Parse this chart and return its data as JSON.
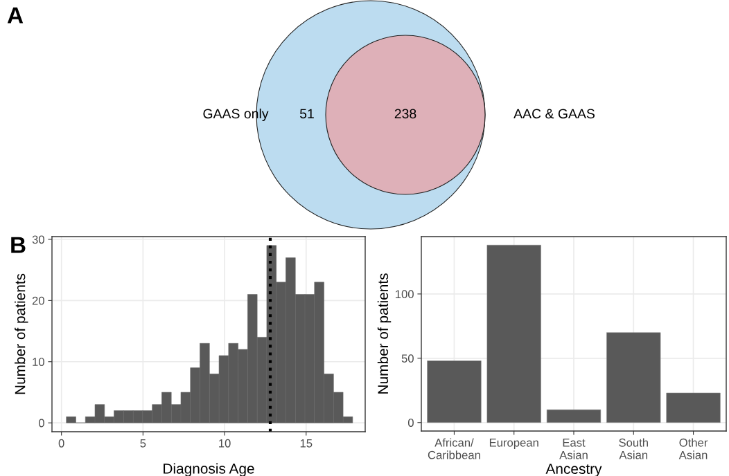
{
  "chart_data": [
    {
      "type": "other",
      "categories": [
        "GAAS only",
        "AAC & GAAS"
      ],
      "values": [
        51,
        238
      ],
      "data_labels": true,
      "colors": [
        "#bcdcf0",
        "#deb0b8"
      ],
      "annotations": [
        "A"
      ]
    },
    {
      "type": "histogram",
      "xlabel": "Diagnosis Age",
      "ylabel": "Number of patients",
      "color": "#595959",
      "bins": [
        0.3,
        0.885,
        1.47,
        2.055,
        2.64,
        3.225,
        3.81,
        4.395,
        4.98,
        5.565,
        6.15,
        6.735,
        7.32,
        7.905,
        8.49,
        9.075,
        9.66,
        10.245,
        10.83,
        11.415,
        12.0,
        12.585,
        13.17,
        13.755,
        14.34,
        14.925,
        15.51,
        16.095,
        16.68,
        17.265,
        17.85
      ],
      "values": [
        1,
        0,
        1,
        3,
        1,
        2,
        2,
        2,
        2,
        3,
        5,
        3,
        5,
        9,
        13,
        8,
        11,
        13,
        12,
        21,
        14,
        29,
        23,
        27,
        21,
        21,
        23,
        8,
        5,
        1
      ],
      "xlim": [
        -0.58,
        18.62
      ],
      "ylim": [
        -1.45,
        30.45
      ],
      "xticks": [
        0,
        5,
        10,
        15
      ],
      "yticks": [
        0,
        10,
        20,
        30
      ],
      "grid": true,
      "ref_lines": [
        {
          "axis": "x",
          "value": 12.8,
          "color": "#000000",
          "line_style": "dotted"
        }
      ],
      "annotations": [
        "B"
      ]
    },
    {
      "type": "bar",
      "xlabel": "Ancestry",
      "ylabel": "Number of patients",
      "color": "#595959",
      "categories": [
        "African/\nCaribbean",
        "European",
        "East\nAsian",
        "South\nAsian",
        "Other\nAsian"
      ],
      "values": [
        48,
        138,
        10,
        70,
        23
      ],
      "ylim": [
        -6.6,
        144.6
      ],
      "yticks": [
        0,
        50,
        100
      ],
      "grid": true
    }
  ]
}
